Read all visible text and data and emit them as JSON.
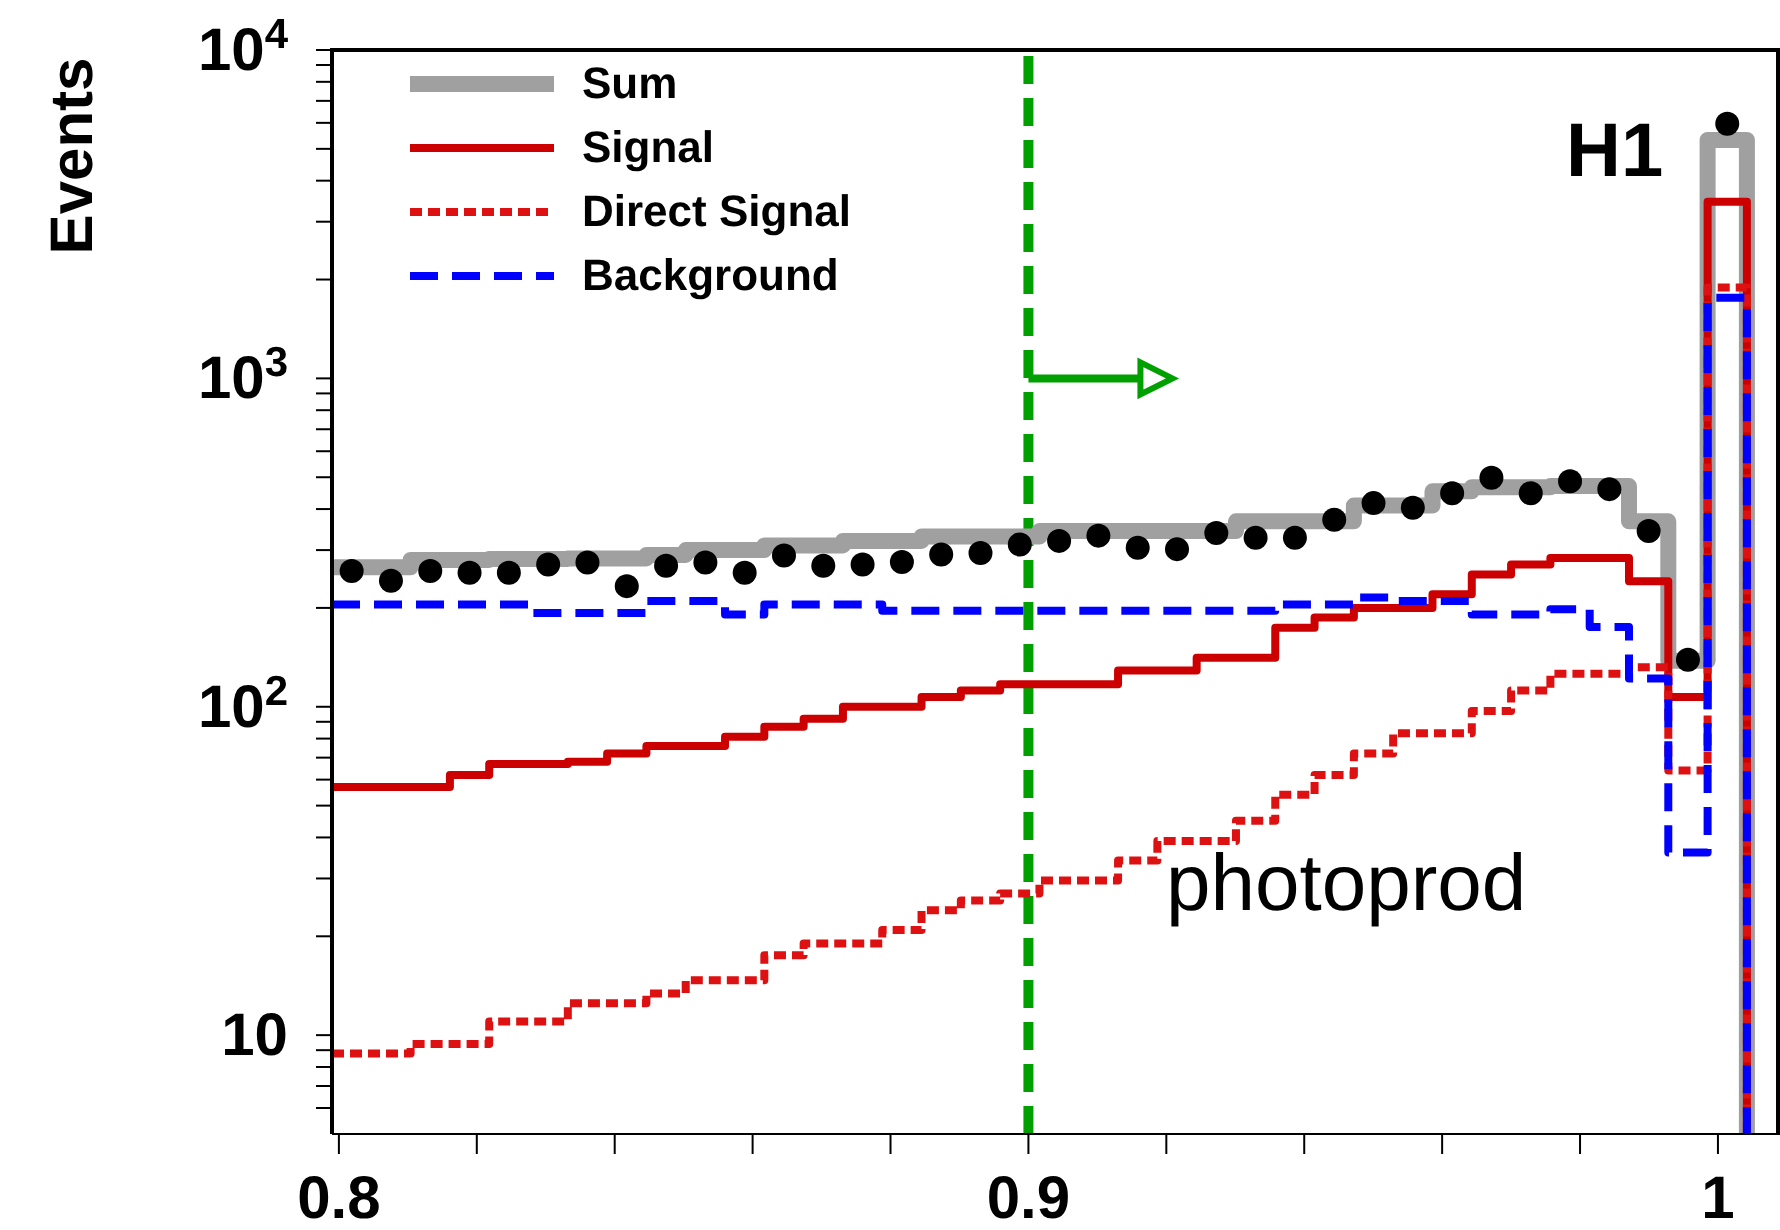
{
  "chart_data": {
    "type": "histogram",
    "ylabel": "Events",
    "annotations": [
      "H1",
      "photoprod"
    ],
    "bins": [
      0.799,
      0.8047,
      0.8104,
      0.8161,
      0.8218,
      0.8275,
      0.8332,
      0.8389,
      0.8446,
      0.8503,
      0.856,
      0.8617,
      0.8674,
      0.8731,
      0.8788,
      0.8845,
      0.8902,
      0.8959,
      0.9016,
      0.9073,
      0.913,
      0.9187,
      0.9244,
      0.9301,
      0.9358,
      0.9415,
      0.9472,
      0.9529,
      0.9586,
      0.9643,
      0.97,
      0.9757,
      0.9814,
      0.9871,
      0.9928,
      0.9985,
      1.0042
    ],
    "series": [
      {
        "name": "Sum",
        "color": "#a0a0a0",
        "line_style": "solid",
        "values": [
          266,
          266,
          280,
          280,
          282,
          282,
          283,
          283,
          290,
          300,
          300,
          310,
          310,
          320,
          320,
          330,
          330,
          330,
          343,
          343,
          343,
          343,
          343,
          367,
          367,
          367,
          410,
          410,
          453,
          466,
          466,
          470,
          470,
          367,
          138,
          5320
        ]
      },
      {
        "name": "Signal",
        "color": "#cc0000",
        "line_style": "solid",
        "values": [
          57,
          57,
          57,
          62,
          67,
          67,
          68,
          72,
          76,
          76,
          81,
          87,
          92,
          100,
          100,
          107,
          112,
          117,
          117,
          117,
          129,
          129,
          141,
          141,
          174,
          187,
          200,
          200,
          220,
          253,
          271,
          284,
          284,
          241,
          107,
          3450
        ]
      },
      {
        "name": "Direct Signal",
        "color": "#dd1111",
        "line_style": "dotted",
        "values": [
          8.8,
          8.8,
          9.4,
          9.4,
          11,
          11,
          12.5,
          12.5,
          13.4,
          14.7,
          14.7,
          17.5,
          19,
          19,
          20.9,
          24,
          25.7,
          27,
          29.6,
          29.6,
          34,
          39,
          39,
          45,
          54,
          62,
          72,
          83,
          83,
          97,
          112,
          126,
          126,
          132,
          64,
          1890
        ]
      },
      {
        "name": "Background",
        "color": "#0000ff",
        "line_style": "dashed",
        "values": [
          205,
          205,
          205,
          205,
          205,
          193,
          193,
          193,
          210,
          210,
          191,
          205,
          205,
          205,
          196,
          196,
          196,
          196,
          196,
          196,
          196,
          196,
          196,
          196,
          205,
          205,
          215,
          210,
          210,
          191,
          191,
          198,
          175,
          122,
          36,
          1760
        ]
      },
      {
        "type": "scatter",
        "color": "#000000",
        "marker": "circle",
        "x": [
          0.80185,
          0.80755,
          0.81325,
          0.81895,
          0.82465,
          0.83035,
          0.83605,
          0.84175,
          0.84745,
          0.85315,
          0.85885,
          0.86455,
          0.87025,
          0.87595,
          0.88165,
          0.88735,
          0.89305,
          0.89875,
          0.90445,
          0.91015,
          0.91585,
          0.92155,
          0.92725,
          0.93295,
          0.93865,
          0.94435,
          0.95005,
          0.95575,
          0.96145,
          0.96715,
          0.97285,
          0.97855,
          0.98425,
          0.98995,
          0.99565,
          1.00135
        ],
        "values": [
          259,
          242,
          259,
          256,
          256,
          271,
          275,
          233,
          269,
          275,
          256,
          289,
          269,
          271,
          276,
          291,
          294,
          312,
          320,
          332,
          305,
          302,
          338,
          327,
          327,
          371,
          417,
          404,
          447,
          498,
          447,
          486,
          460,
          343,
          139,
          5960
        ]
      }
    ],
    "xlim": [
      0.799,
      1.009
    ],
    "xticks": [
      0.8,
      {
        "value": 0.82,
        "label": null
      },
      {
        "value": 0.84,
        "label": null
      },
      {
        "value": 0.86,
        "label": null
      },
      {
        "value": 0.88,
        "label": null
      },
      0.9,
      {
        "value": 0.92,
        "label": null
      },
      {
        "value": 0.94,
        "label": null
      },
      {
        "value": 0.96,
        "label": null
      },
      {
        "value": 0.98,
        "label": null
      },
      {
        "value": 1,
        "label": "1"
      }
    ],
    "ylim": [
      5,
      10000
    ],
    "log": true,
    "yticks": [
      {
        "value": 6,
        "label": null
      },
      {
        "value": 7,
        "label": null
      },
      {
        "value": 8,
        "label": null
      },
      {
        "value": 9,
        "label": null
      },
      10,
      {
        "value": 20,
        "label": null
      },
      {
        "value": 30,
        "label": null
      },
      {
        "value": 40,
        "label": null
      },
      {
        "value": 50,
        "label": null
      },
      {
        "value": 60,
        "label": null
      },
      {
        "value": 70,
        "label": null
      },
      {
        "value": 80,
        "label": null
      },
      {
        "value": 90,
        "label": null
      },
      {
        "value": 100,
        "label": "10$^{2}$"
      },
      {
        "value": 200,
        "label": null
      },
      {
        "value": 300,
        "label": null
      },
      {
        "value": 400,
        "label": null
      },
      {
        "value": 500,
        "label": null
      },
      {
        "value": 600,
        "label": null
      },
      {
        "value": 700,
        "label": null
      },
      {
        "value": 800,
        "label": null
      },
      {
        "value": 900,
        "label": null
      },
      {
        "value": 1000,
        "label": "10$^{3}$"
      },
      {
        "value": 2000,
        "label": null
      },
      {
        "value": 3000,
        "label": null
      },
      {
        "value": 4000,
        "label": null
      },
      {
        "value": 5000,
        "label": null
      },
      {
        "value": 6000,
        "label": null
      },
      {
        "value": 7000,
        "label": null
      },
      {
        "value": 8000,
        "label": null
      },
      {
        "value": 9000,
        "label": null
      },
      {
        "value": 10000,
        "label": "10$^{4}$"
      }
    ],
    "ref_lines": [
      {
        "axis": "x",
        "value": 0.9,
        "color": "#00a000",
        "line_style": "dashed"
      }
    ],
    "legend": "top left",
    "grid": false
  }
}
